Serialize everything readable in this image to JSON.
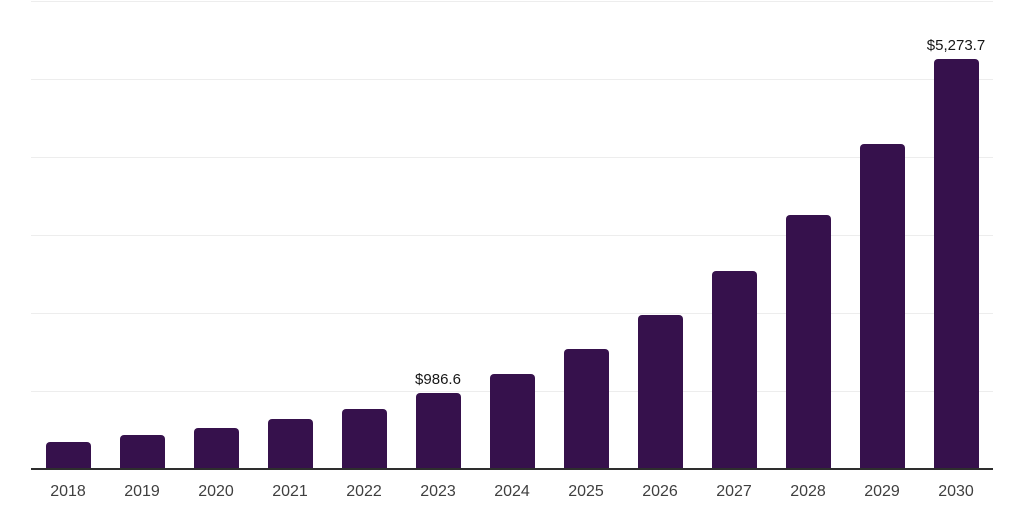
{
  "page": {
    "background": "#ffffff"
  },
  "chart_data": {
    "type": "bar",
    "title": "",
    "xlabel": "",
    "ylabel": "",
    "categories": [
      "2018",
      "2019",
      "2020",
      "2021",
      "2022",
      "2023",
      "2024",
      "2025",
      "2026",
      "2027",
      "2028",
      "2029",
      "2030"
    ],
    "values": [
      355,
      445,
      535,
      660,
      780,
      986.6,
      1235,
      1555,
      1990,
      2555,
      3265,
      4175,
      5273.7
    ],
    "data_labels": {
      "2023": "$986.6",
      "2030": "$5,273.7"
    },
    "ylim": [
      0,
      6000
    ],
    "gridline_step": 1000,
    "grid": true,
    "legend": "none",
    "y_axis_tick_labels_visible": false,
    "colors": {
      "bar": "#36114C",
      "gridline": "#ededed",
      "axis_line": "#2e2e2e",
      "x_tick_label": "#3f3f3f",
      "data_label": "#161616"
    }
  }
}
